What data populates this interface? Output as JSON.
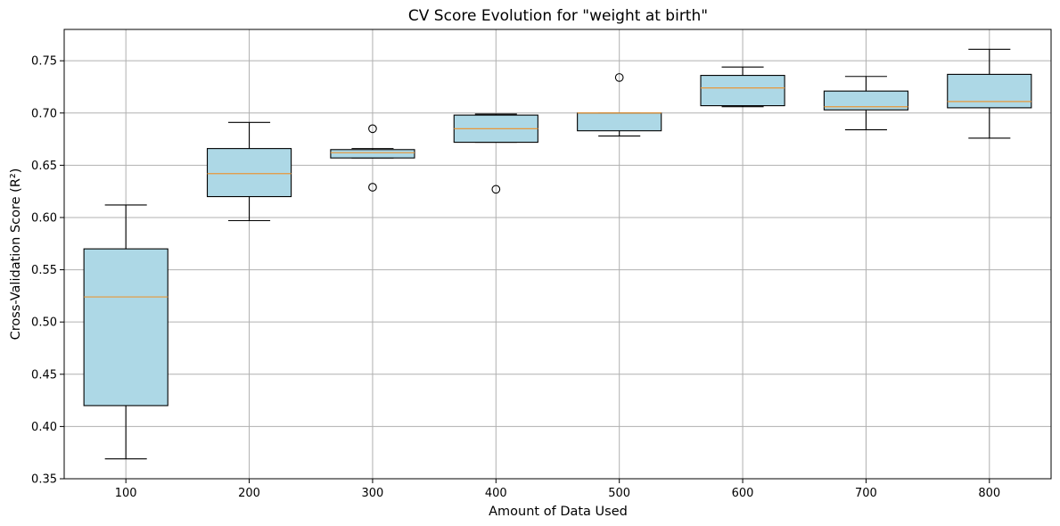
{
  "chart_data": {
    "type": "box",
    "title": "CV Score Evolution for \"weight at birth\"",
    "xlabel": "Amount of Data Used",
    "ylabel": "Cross-Validation Score (R²)",
    "ylim": [
      0.35,
      0.78
    ],
    "yticks": [
      "0.35",
      "0.40",
      "0.45",
      "0.50",
      "0.55",
      "0.60",
      "0.65",
      "0.70",
      "0.75"
    ],
    "grid": true,
    "box_color": "#add8e6",
    "median_color": "#e8973a",
    "categories": [
      "100",
      "200",
      "300",
      "400",
      "500",
      "600",
      "700",
      "800"
    ],
    "boxes": [
      {
        "category": "100",
        "whisker_low": 0.369,
        "q1": 0.42,
        "median": 0.524,
        "q3": 0.57,
        "whisker_high": 0.612,
        "outliers": []
      },
      {
        "category": "200",
        "whisker_low": 0.597,
        "q1": 0.62,
        "median": 0.642,
        "q3": 0.666,
        "whisker_high": 0.691,
        "outliers": []
      },
      {
        "category": "300",
        "whisker_low": 0.657,
        "q1": 0.657,
        "median": 0.662,
        "q3": 0.665,
        "whisker_high": 0.666,
        "outliers": [
          0.629,
          0.685
        ]
      },
      {
        "category": "400",
        "whisker_low": 0.672,
        "q1": 0.672,
        "median": 0.685,
        "q3": 0.698,
        "whisker_high": 0.699,
        "outliers": [
          0.627
        ]
      },
      {
        "category": "500",
        "whisker_low": 0.678,
        "q1": 0.683,
        "median": 0.7,
        "q3": 0.7,
        "whisker_high": 0.7,
        "outliers": [
          0.734
        ]
      },
      {
        "category": "600",
        "whisker_low": 0.706,
        "q1": 0.707,
        "median": 0.724,
        "q3": 0.736,
        "whisker_high": 0.744,
        "outliers": []
      },
      {
        "category": "700",
        "whisker_low": 0.684,
        "q1": 0.703,
        "median": 0.706,
        "q3": 0.721,
        "whisker_high": 0.735,
        "outliers": []
      },
      {
        "category": "800",
        "whisker_low": 0.676,
        "q1": 0.705,
        "median": 0.711,
        "q3": 0.737,
        "whisker_high": 0.761,
        "outliers": []
      }
    ]
  }
}
